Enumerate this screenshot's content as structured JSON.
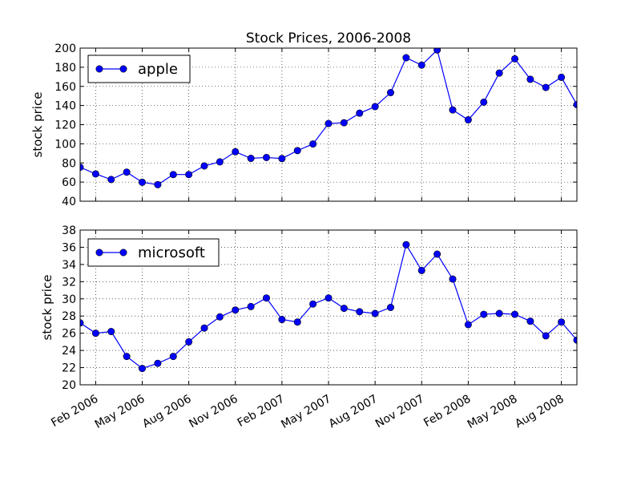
{
  "chart_data": {
    "type": "line",
    "title": "Stock Prices, 2006-2008",
    "grid": true,
    "colors": {
      "series": "#0000ff"
    },
    "x": [
      "2006-01",
      "2006-02",
      "2006-03",
      "2006-04",
      "2006-05",
      "2006-06",
      "2006-07",
      "2006-08",
      "2006-09",
      "2006-10",
      "2006-11",
      "2006-12",
      "2007-01",
      "2007-02",
      "2007-03",
      "2007-04",
      "2007-05",
      "2007-06",
      "2007-07",
      "2007-08",
      "2007-09",
      "2007-10",
      "2007-11",
      "2007-12",
      "2008-01",
      "2008-02",
      "2008-03",
      "2008-04",
      "2008-05",
      "2008-06",
      "2008-07",
      "2008-08",
      "2008-09"
    ],
    "xticks": [
      "Feb 2006",
      "May 2006",
      "Aug 2006",
      "Nov 2006",
      "Feb 2007",
      "May 2007",
      "Aug 2007",
      "Nov 2007",
      "Feb 2008",
      "May 2008",
      "Aug 2008"
    ],
    "panels": [
      {
        "ylabel": "stock price",
        "ylim": [
          40,
          200
        ],
        "yticks": [
          40,
          60,
          80,
          100,
          120,
          140,
          160,
          180,
          200
        ],
        "legend_position": "upper-left",
        "series": [
          {
            "name": "apple",
            "values": [
              75.5,
              68.5,
              62.7,
              70.4,
              59.8,
              57.3,
              67.9,
              67.9,
              76.9,
              81.1,
              91.7,
              84.8,
              85.7,
              84.6,
              92.9,
              99.8,
              121.2,
              122.0,
              132.0,
              138.8,
              153.5,
              189.9,
              182.2,
              198.1,
              135.4,
              125.0,
              143.5,
              173.9,
              188.8,
              167.4,
              158.9,
              169.5,
              140.9
            ]
          }
        ]
      },
      {
        "ylabel": "stock price",
        "ylim": [
          20,
          38
        ],
        "yticks": [
          20,
          22,
          24,
          26,
          28,
          30,
          32,
          34,
          36,
          38
        ],
        "legend_position": "upper-left",
        "series": [
          {
            "name": "microsoft",
            "values": [
              27.2,
              26.0,
              26.2,
              23.3,
              21.9,
              22.5,
              23.3,
              25.0,
              26.6,
              27.9,
              28.7,
              29.1,
              30.1,
              27.6,
              27.3,
              29.4,
              30.1,
              28.9,
              28.5,
              28.3,
              29.0,
              36.3,
              33.3,
              35.2,
              32.3,
              27.0,
              28.2,
              28.3,
              28.2,
              27.4,
              25.7,
              27.3,
              25.2
            ]
          }
        ]
      }
    ]
  }
}
